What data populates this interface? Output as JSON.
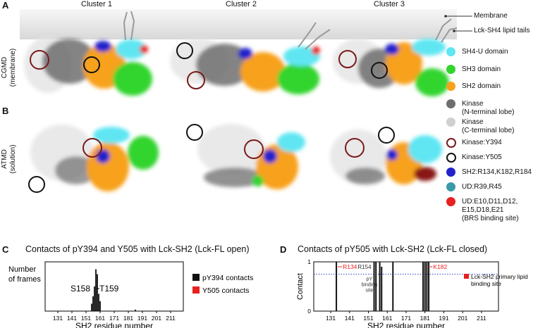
{
  "panels": {
    "A": "A",
    "B": "B",
    "C": "C",
    "D": "D"
  },
  "clusters": [
    "Cluster 1",
    "Cluster 2",
    "Cluster 3"
  ],
  "row_labels": {
    "cgmd_1": "CGMD",
    "cgmd_2": "(membrane)",
    "atmd_1": "ATMD",
    "atmd_2": "(solution)"
  },
  "annotations": {
    "membrane": "Membrane",
    "lipid_tails": "Lck-SH4 lipid tails"
  },
  "legend": [
    {
      "label": "SH4-U domain",
      "color": "#5fe6f2",
      "kind": "dot"
    },
    {
      "label": "SH3 domain",
      "color": "#33d42e",
      "kind": "dot"
    },
    {
      "label": "SH2 domain",
      "color": "#f7a11a",
      "kind": "dot"
    },
    {
      "label": "Kinase",
      "label2": "(N-terminal lobe)",
      "color": "#6e6e6e",
      "kind": "dot"
    },
    {
      "label": "Kinase",
      "label2": "(C-terminal lobe)",
      "color": "#cfcfcf",
      "kind": "dot"
    },
    {
      "label": "Kinase:Y394",
      "color": "#7a1a1a",
      "kind": "ring"
    },
    {
      "label": "Kinase:Y505",
      "color": "#111111",
      "kind": "ring"
    },
    {
      "label": "SH2:R134,K182,R184",
      "color": "#2222cc",
      "kind": "dot"
    },
    {
      "label": "UD:R39,R45",
      "color": "#3a9aa6",
      "kind": "dot"
    },
    {
      "label": "UD:E10,D11,D12,",
      "label2": "E15,D18,E21",
      "label3": "(BRS binding site)",
      "color": "#e82020",
      "kind": "dot"
    }
  ],
  "chart_data": [
    {
      "type": "bar",
      "title": "Contacts of pY394 and Y505 with Lck-SH2 (Lck-FL open)",
      "xlabel": "SH2 residue number",
      "ylabel": "Number of frames",
      "xlim": [
        122,
        220
      ],
      "xticks": [
        131,
        141,
        151,
        161,
        171,
        181,
        191,
        201,
        211
      ],
      "series": [
        {
          "name": "pY394 contacts",
          "color": "#111111",
          "x": [
            155,
            156,
            157,
            158,
            159,
            160,
            161,
            186
          ],
          "values": [
            0.15,
            0.3,
            0.5,
            0.85,
            0.75,
            0.35,
            0.2,
            0.03
          ]
        },
        {
          "name": "Y505 contacts",
          "color": "#e82020",
          "x": [],
          "values": []
        }
      ],
      "annotations": [
        "S158",
        "T159"
      ]
    },
    {
      "type": "bar",
      "title": "Contacts of pY505 with Lck-SH2 (Lck-FL closed)",
      "xlabel": "SH2 residue number",
      "ylabel": "Contact",
      "ylim": [
        0,
        1
      ],
      "yticks": [
        0,
        1
      ],
      "xlim": [
        122,
        220
      ],
      "xticks": [
        131,
        141,
        151,
        161,
        171,
        181,
        191,
        201,
        211
      ],
      "series": [
        {
          "name": "pY505 contacts",
          "color": "#111111",
          "x": [
            134,
            154,
            155,
            157,
            158,
            164,
            180,
            181,
            182,
            183
          ],
          "values": [
            1.0,
            1.0,
            1.0,
            1.0,
            0.9,
            1.0,
            1.0,
            1.0,
            1.0,
            1.0
          ]
        }
      ],
      "highlighted": [
        {
          "label": "R134",
          "x": 134,
          "color": "#e82020"
        },
        {
          "label": "K182",
          "x": 182,
          "color": "#e82020"
        }
      ],
      "labels": {
        "r154": "R154",
        "pY1": "pY",
        "pY2": "binding",
        "pY3": "site"
      },
      "legend": {
        "label": "Lck-SH2 primary lipid",
        "label2": "binding site",
        "color": "#e82020"
      }
    }
  ]
}
